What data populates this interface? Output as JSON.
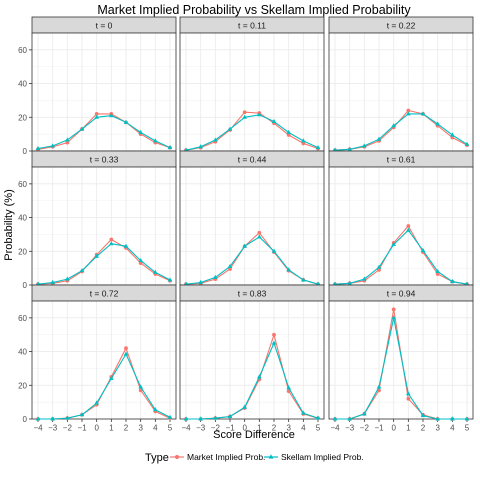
{
  "chart_data": {
    "type": "line",
    "title": "Market Implied Probability vs Skellam Implied Probability",
    "xlabel": "Score Difference",
    "ylabel": "Probability (%)",
    "x": [
      -4,
      -3,
      -2,
      -1,
      0,
      1,
      2,
      3,
      4,
      5
    ],
    "x_tick_labels": [
      "−4",
      "−3",
      "−2",
      "−1",
      "0",
      "1",
      "2",
      "3",
      "4",
      "5"
    ],
    "xlim": [
      -4,
      5
    ],
    "ylim": [
      0,
      70
    ],
    "y_ticks": [
      0,
      20,
      40,
      60
    ],
    "grid": true,
    "legend": {
      "title": "Type",
      "position": "bottom",
      "items": [
        "Market Implied Prob.",
        "Skellam Implied Prob."
      ]
    },
    "colors": {
      "market": "#F8766D",
      "skellam": "#00BFC4",
      "strip": "#D9D9D9",
      "grid": "#EBEBEB"
    },
    "panels": [
      {
        "label": "t = 0",
        "market": [
          1,
          2.5,
          5,
          13,
          22,
          22,
          17,
          10,
          5,
          2
        ],
        "skellam": [
          1.5,
          3,
          6.5,
          13,
          20,
          21,
          17,
          11,
          6,
          2
        ]
      },
      {
        "label": "t = 0.11",
        "market": [
          0.5,
          2,
          5.5,
          12.5,
          23,
          22.5,
          16.5,
          9.5,
          4.5,
          1.5
        ],
        "skellam": [
          0.5,
          2.5,
          6.5,
          13,
          20,
          21.5,
          17.5,
          11,
          6,
          2
        ]
      },
      {
        "label": "t = 0.22",
        "market": [
          0.5,
          1,
          2.5,
          6,
          14,
          24,
          22,
          15,
          8,
          3.5
        ],
        "skellam": [
          0.5,
          1,
          3,
          7,
          15,
          22,
          22,
          16,
          9.5,
          4
        ]
      },
      {
        "label": "t = 0.33",
        "market": [
          0.5,
          1,
          2.5,
          8,
          18,
          27,
          22,
          13,
          6.5,
          2.5
        ],
        "skellam": [
          0.5,
          1.5,
          3.5,
          8.5,
          17,
          24.5,
          23,
          14.5,
          7.5,
          3
        ]
      },
      {
        "label": "t = 0.44",
        "market": [
          0.5,
          1,
          3.5,
          9.5,
          23,
          31,
          19.5,
          8.5,
          3,
          0.5
        ],
        "skellam": [
          0.5,
          1.5,
          4.5,
          11,
          23,
          28.5,
          20,
          9,
          3,
          0.5
        ]
      },
      {
        "label": "t = 0.61",
        "market": [
          0.5,
          1,
          2.5,
          9,
          25,
          35,
          19.5,
          6.5,
          2,
          0.5
        ],
        "skellam": [
          0.5,
          1,
          3.5,
          10.5,
          24,
          32.5,
          20.5,
          8,
          2,
          0.5
        ]
      },
      {
        "label": "t = 0.72",
        "market": [
          0,
          0,
          0.5,
          2.5,
          8.5,
          25,
          42,
          17,
          4.5,
          0.5
        ],
        "skellam": [
          0,
          0,
          0.5,
          2.5,
          9.5,
          24,
          38.5,
          19,
          5.5,
          1
        ]
      },
      {
        "label": "t = 0.83",
        "market": [
          0,
          0,
          0.5,
          1.5,
          6.5,
          23.5,
          50,
          16.5,
          3,
          0.5
        ],
        "skellam": [
          0,
          0,
          0.5,
          1.5,
          7,
          25,
          45,
          18.5,
          3.5,
          0.5
        ]
      },
      {
        "label": "t = 0.94",
        "market": [
          0,
          0,
          3,
          17,
          65,
          12,
          2.5,
          0,
          0,
          0
        ],
        "skellam": [
          0,
          0,
          3,
          19,
          60,
          15,
          2,
          0,
          0,
          0
        ]
      }
    ]
  }
}
